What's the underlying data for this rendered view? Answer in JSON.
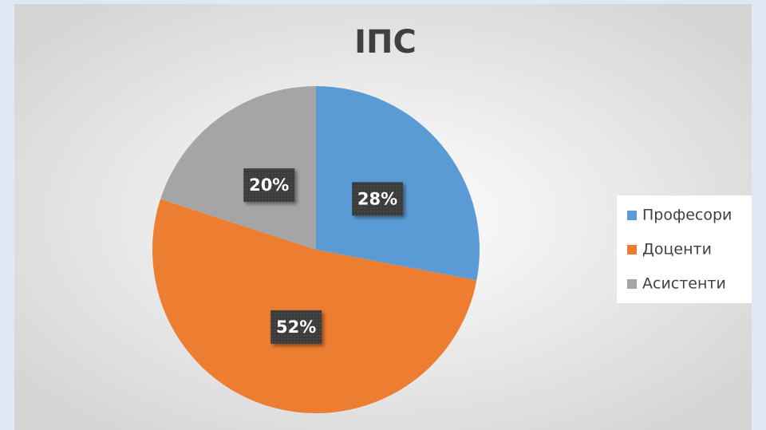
{
  "chart_data": {
    "type": "pie",
    "title": "ІПС",
    "categories": [
      "Професори",
      "Доценти",
      "Асистенти"
    ],
    "values": [
      28,
      52,
      20
    ],
    "value_labels": [
      "28%",
      "52%",
      "20%"
    ],
    "colors": [
      "#5b9bd5",
      "#ed7d31",
      "#a5a5a5"
    ],
    "legend": "right"
  }
}
